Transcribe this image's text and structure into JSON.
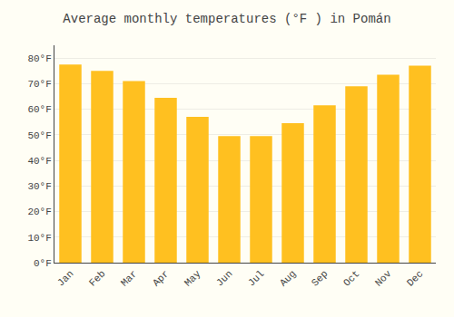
{
  "chart_data": {
    "type": "bar",
    "title": "Average monthly temperatures (°F ) in Pomán",
    "categories": [
      "Jan",
      "Feb",
      "Mar",
      "Apr",
      "May",
      "Jun",
      "Jul",
      "Aug",
      "Sep",
      "Oct",
      "Nov",
      "Dec"
    ],
    "values": [
      77.5,
      75.0,
      71.0,
      64.5,
      57.0,
      49.5,
      49.5,
      54.5,
      61.5,
      69.0,
      73.5,
      77.0
    ],
    "color": "#FFC020",
    "ylim": [
      0,
      85
    ],
    "yticks": [
      {
        "value": 0,
        "label": "0°F"
      },
      {
        "value": 10,
        "label": "10°F"
      },
      {
        "value": 20,
        "label": "20°F"
      },
      {
        "value": 30,
        "label": "30°F"
      },
      {
        "value": 40,
        "label": "40°F"
      },
      {
        "value": 50,
        "label": "50°F"
      },
      {
        "value": 60,
        "label": "60°F"
      },
      {
        "value": 70,
        "label": "70°F"
      },
      {
        "value": 80,
        "label": "80°F"
      }
    ],
    "grid": true
  }
}
